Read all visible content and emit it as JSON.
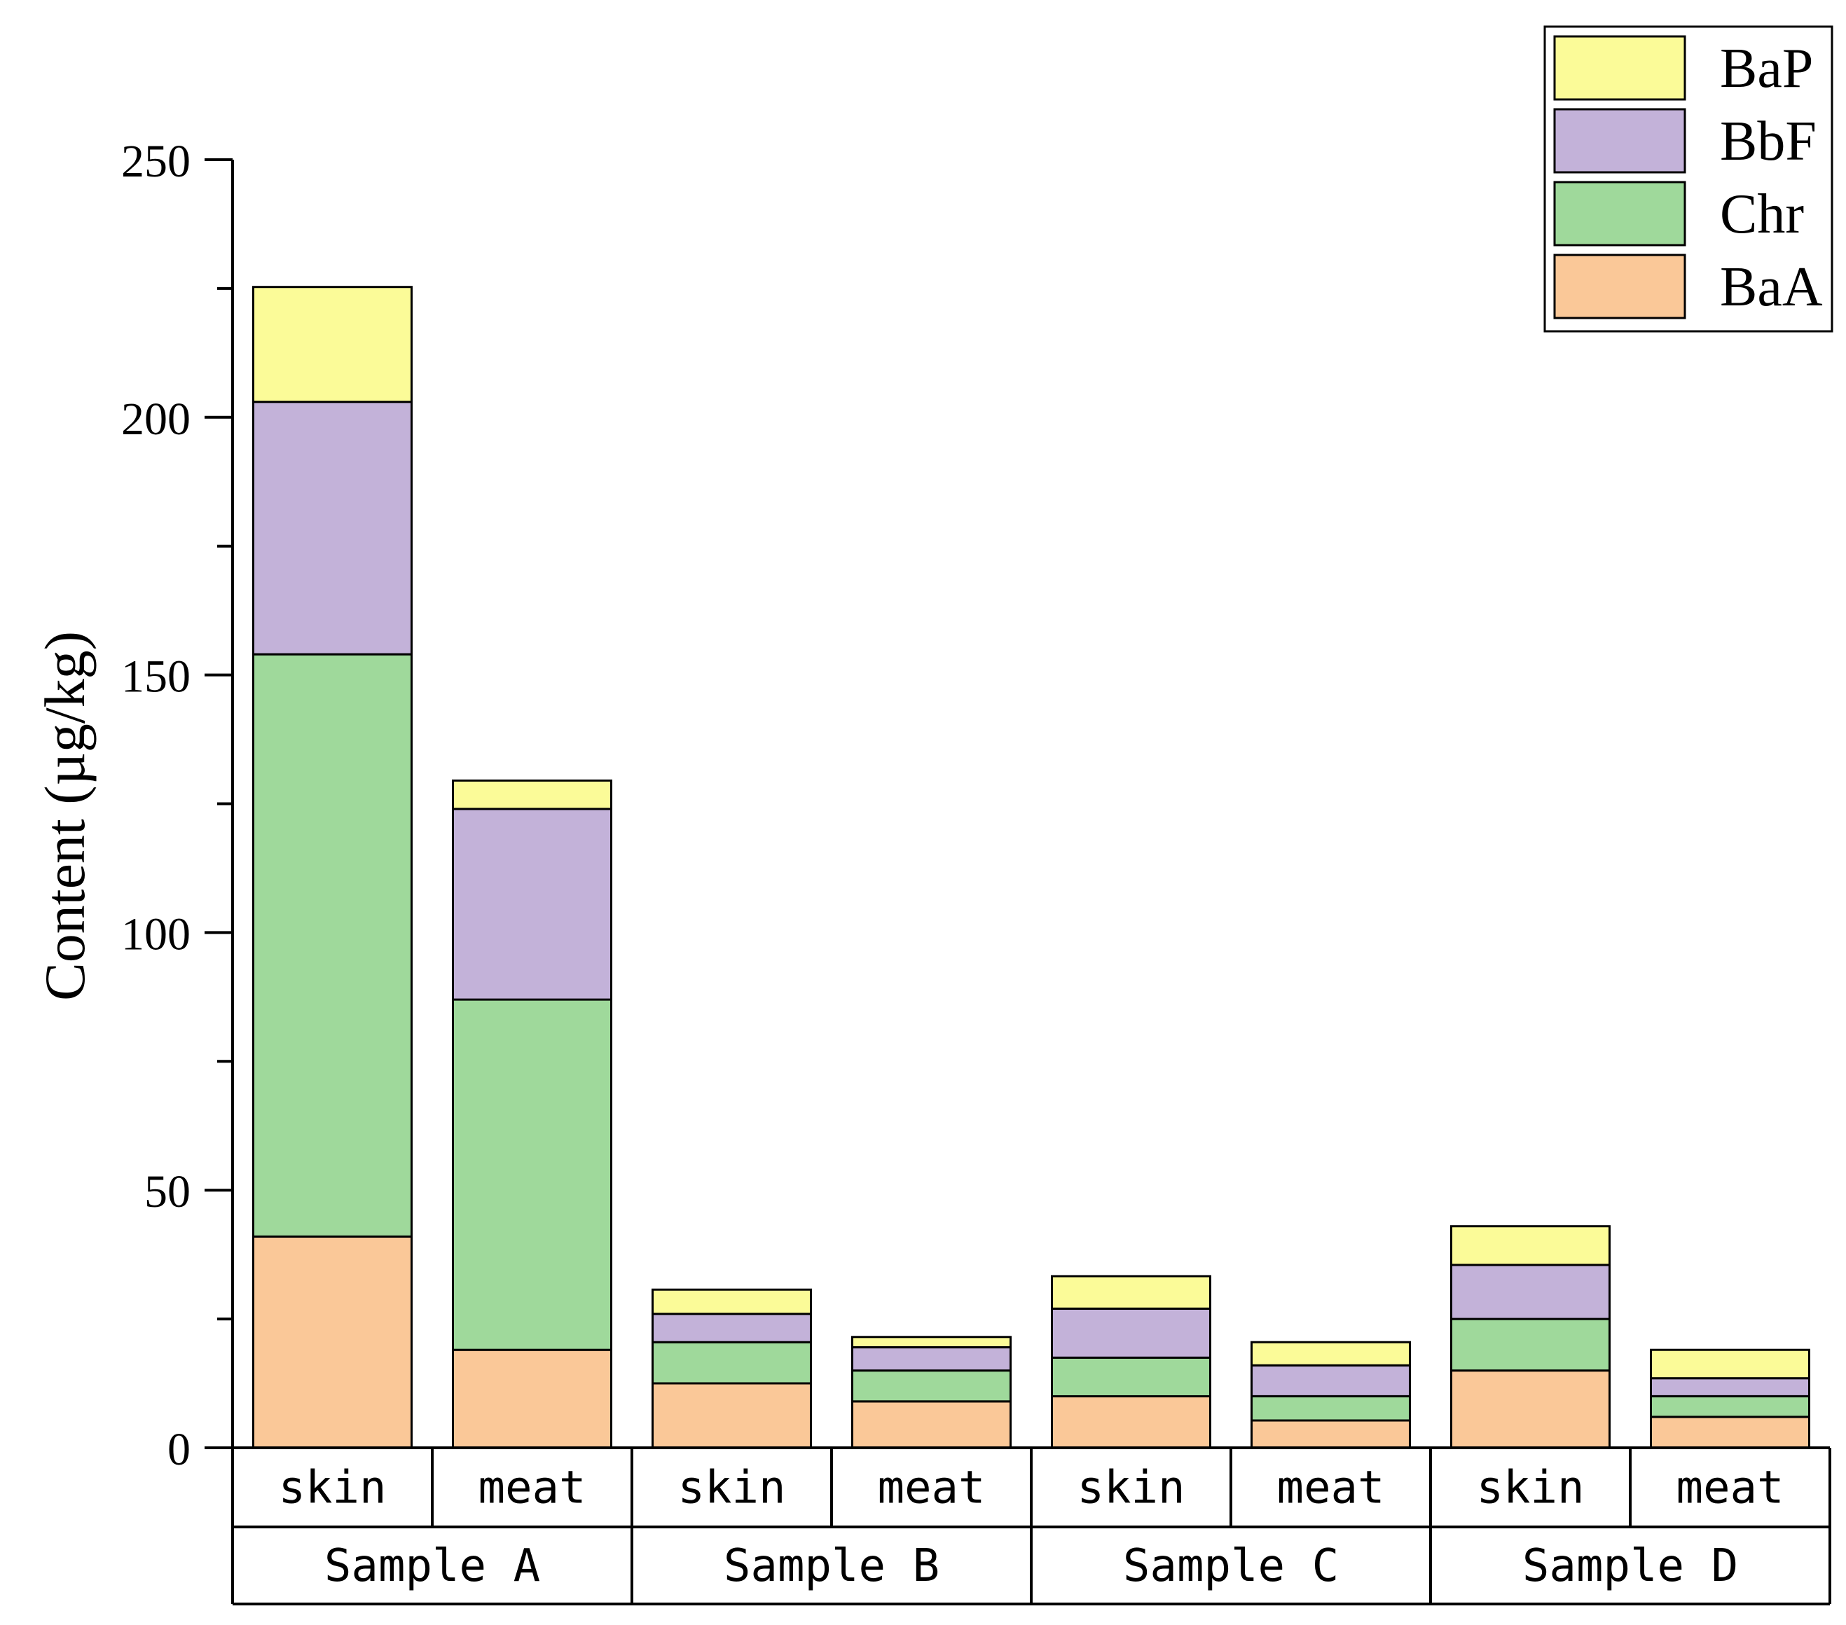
{
  "chart_data": {
    "type": "bar",
    "stacked": true,
    "title": "",
    "xlabel": "",
    "ylabel": "Content (µg/kg)",
    "ylim": [
      0,
      250
    ],
    "yticks": [
      0,
      50,
      100,
      150,
      200,
      250
    ],
    "grid": false,
    "legend_position": "top-right",
    "groups": [
      "Sample A",
      "Sample B",
      "Sample C",
      "Sample D"
    ],
    "subcategories": [
      "skin",
      "meat"
    ],
    "categories": [
      "skin",
      "meat",
      "skin",
      "meat",
      "skin",
      "meat",
      "skin",
      "meat"
    ],
    "legend_order": [
      "BaP",
      "BbF",
      "Chr",
      "BaA"
    ],
    "series": [
      {
        "name": "BaA",
        "color": "#FAC898",
        "values": [
          41,
          19,
          12.5,
          9,
          10,
          5.3,
          15,
          6
        ]
      },
      {
        "name": "Chr",
        "color": "#9FD99B",
        "values": [
          113,
          68,
          8,
          6,
          7.5,
          4.7,
          10,
          4
        ]
      },
      {
        "name": "BbF",
        "color": "#C3B2D9",
        "values": [
          49,
          37,
          5.5,
          4.5,
          9.5,
          6,
          10.5,
          3.5
        ]
      },
      {
        "name": "BaP",
        "color": "#FBFB98",
        "values": [
          22.3,
          5.5,
          4.7,
          2,
          6.3,
          4.5,
          7.5,
          5.5
        ]
      }
    ]
  }
}
